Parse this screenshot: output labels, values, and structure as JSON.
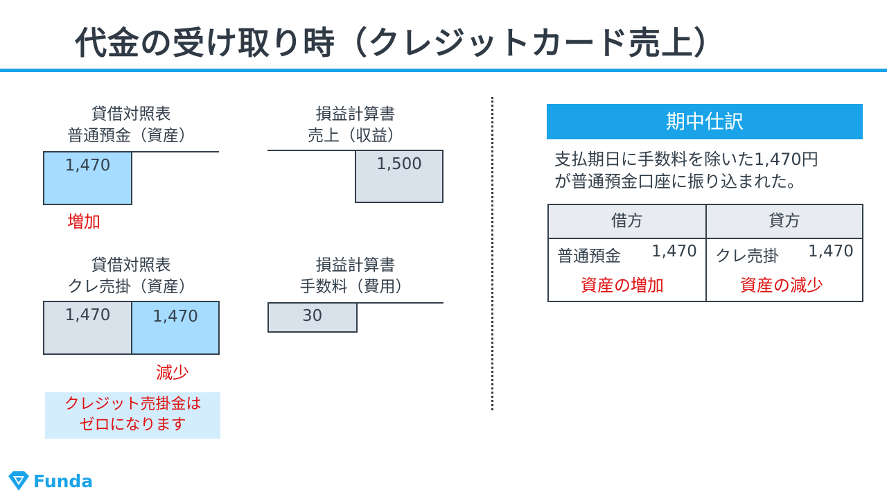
{
  "title": "代金の受け取り時（クレジットカード売上）",
  "accounts": {
    "bank": {
      "statement": "貸借対照表",
      "name": "普通預金（資産）",
      "debit": "1,470",
      "change": "増加"
    },
    "sales": {
      "statement": "損益計算書",
      "name": "売上（収益）",
      "credit": "1,500"
    },
    "card_receivable": {
      "statement": "貸借対照表",
      "name": "クレ売掛（資産）",
      "debit": "1,470",
      "credit": "1,470",
      "change": "減少"
    },
    "fees": {
      "statement": "損益計算書",
      "name": "手数料（費用）",
      "debit": "30"
    }
  },
  "note": {
    "line1": "クレジット売掛金は",
    "line2": "ゼロになります"
  },
  "journal": {
    "title": "期中仕訳",
    "desc_line1": "支払期日に手数料を除いた1,470円",
    "desc_line2": "が普通預金口座に振り込まれた。",
    "debit_header": "借方",
    "credit_header": "貸方",
    "debit_account": "普通預金",
    "debit_amount": "1,470",
    "debit_effect": "資産の増加",
    "credit_account": "クレ売掛",
    "credit_amount": "1,470",
    "credit_effect": "資産の減少"
  },
  "brand": {
    "name": "Funda",
    "color": "#1aa3e8"
  },
  "colors": {
    "accent": "#1aa3e8",
    "increase_box": "#a6dcff",
    "neutral_box": "#d9e1ea",
    "emphasis_text": "#e01010"
  }
}
